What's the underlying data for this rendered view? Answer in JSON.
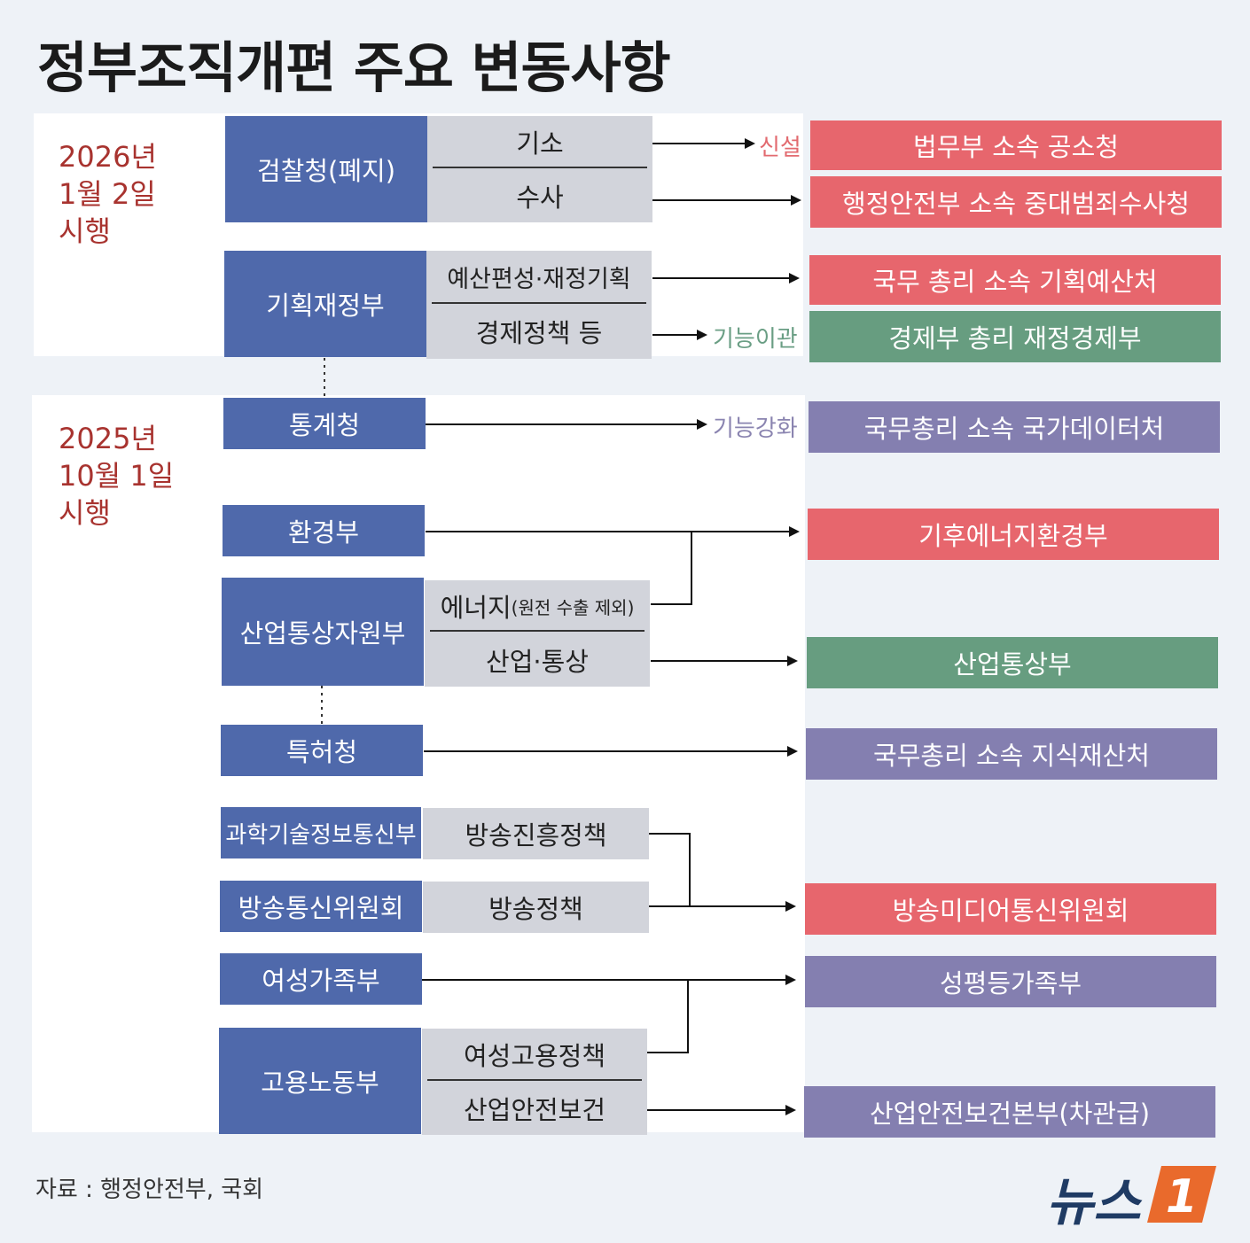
{
  "title": "정부조직개편 주요 변동사항",
  "periods": [
    {
      "date": "2026년\n1월 2일\n시행"
    },
    {
      "date": "2025년\n10월 1일\n시행"
    }
  ],
  "sources": {
    "prosecution": "검찰청(폐지)",
    "finance": "기획재정부",
    "statistics": "통계청",
    "environment": "환경부",
    "industry": "산업통상자원부",
    "patent": "특허청",
    "science": "과학기술정보통신부",
    "broadcast": "방송통신위원회",
    "gender": "여성가족부",
    "labor": "고용노동부"
  },
  "functions": {
    "indict": "기소",
    "investigate": "수사",
    "budget": "예산편성·재정기획",
    "economy": "경제정책 등",
    "energy_main": "에너지",
    "energy_sub": "(원전 수출 제외)",
    "trade": "산업·통상",
    "broadcast_promo": "방송진흥정책",
    "broadcast_policy": "방송정책",
    "women_employment": "여성고용정책",
    "safety": "산업안전보건"
  },
  "labels": {
    "new": "신설",
    "transfer": "기능이관",
    "strengthen": "기능강화"
  },
  "targets": {
    "indict_office": "법무부 소속 공소청",
    "crime_agency": "행정안전부 소속 중대범죄수사청",
    "budget_office": "국무 총리 소속 기획예산처",
    "finance_economy": "경제부 총리 재정경제부",
    "data_office": "국무총리 소속 국가데이터처",
    "climate": "기후에너지환경부",
    "trade_ministry": "산업통상부",
    "ip_office": "국무총리 소속 지식재산처",
    "media_commission": "방송미디어통신위원회",
    "equality": "성평등가족부",
    "safety_hq": "산업안전보건본부(차관급)"
  },
  "colors": {
    "source": "#4f69ab",
    "function": "#d2d4db",
    "red": "#e7666d",
    "green": "#679d80",
    "purple": "#847fb0",
    "date": "#a8332f"
  },
  "footer": "자료 : 행정안전부, 국회",
  "logo": {
    "text": "뉴스",
    "mark": "1"
  }
}
